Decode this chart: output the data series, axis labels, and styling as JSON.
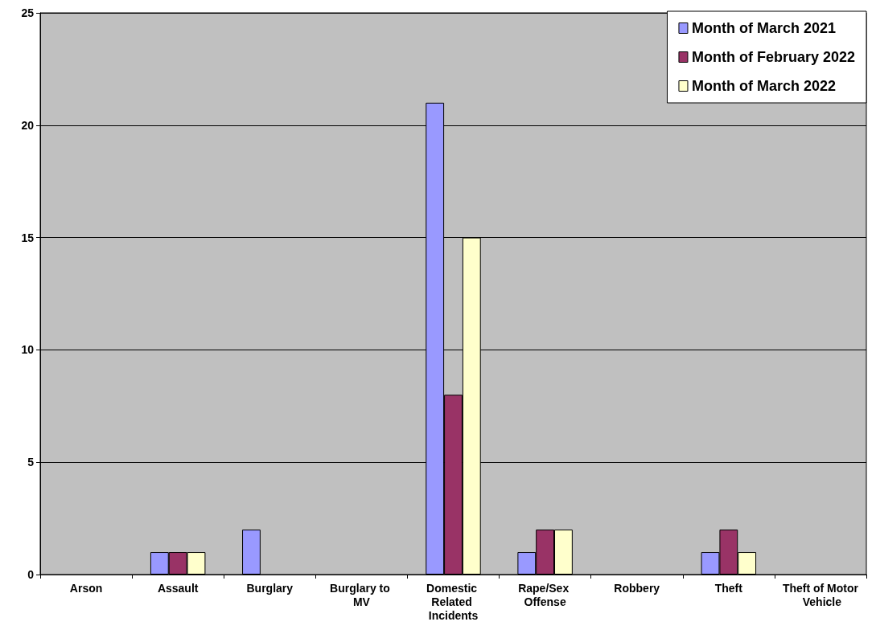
{
  "chart_data": {
    "type": "bar",
    "categories": [
      "Arson",
      "Assault",
      "Burglary",
      "Burglary to MV",
      "Domestic Related Incidents",
      "Rape/Sex Offense",
      "Robbery",
      "Theft",
      "Theft of Motor Vehicle"
    ],
    "series": [
      {
        "name": "Month of March 2021",
        "color": "#9999ff",
        "values": [
          0,
          1,
          2,
          0,
          21,
          1,
          0,
          1,
          0
        ]
      },
      {
        "name": "Month of February 2022",
        "color": "#993366",
        "values": [
          0,
          1,
          0,
          0,
          8,
          2,
          0,
          2,
          0
        ]
      },
      {
        "name": "Month of March 2022",
        "color": "#ffffcc",
        "values": [
          0,
          1,
          0,
          0,
          15,
          2,
          0,
          1,
          0
        ]
      }
    ],
    "ylim": [
      0,
      25
    ],
    "yticks": [
      0,
      5,
      10,
      15,
      20,
      25
    ],
    "grid": "y",
    "legend": "top right"
  }
}
